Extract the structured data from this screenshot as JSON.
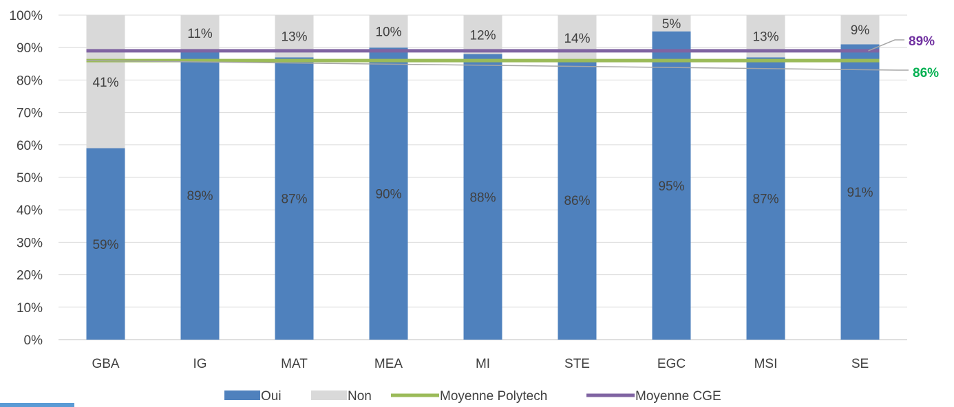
{
  "chart_data": {
    "type": "bar",
    "stacked": true,
    "categories": [
      "GBA",
      "IG",
      "MAT",
      "MEA",
      "MI",
      "STE",
      "EGC",
      "MSI",
      "SE"
    ],
    "series": [
      {
        "name": "Oui",
        "type": "bar",
        "color": "#4f81bd",
        "values": [
          59,
          89,
          87,
          90,
          88,
          86,
          95,
          87,
          91
        ],
        "labels": [
          "59%",
          "89%",
          "87%",
          "90%",
          "88%",
          "86%",
          "95%",
          "87%",
          "91%"
        ]
      },
      {
        "name": "Non",
        "type": "bar",
        "color": "#d9d9d9",
        "values": [
          41,
          11,
          13,
          10,
          12,
          14,
          5,
          13,
          9
        ],
        "labels": [
          "41%",
          "11%",
          "13%",
          "10%",
          "12%",
          "14%",
          "5%",
          "13%",
          "9%"
        ]
      },
      {
        "name": "Moyenne Polytech",
        "type": "line",
        "color": "#9bbb59",
        "value": 86,
        "label": "86%",
        "label_color": "#00b050"
      },
      {
        "name": "Moyenne CGE",
        "type": "line",
        "color": "#8064a2",
        "value": 89,
        "label": "89%",
        "label_color": "#7030a0"
      }
    ],
    "yticks": [
      "0%",
      "10%",
      "20%",
      "30%",
      "40%",
      "50%",
      "60%",
      "70%",
      "80%",
      "90%",
      "100%"
    ],
    "ylim": [
      0,
      100
    ],
    "xlabel": "",
    "ylabel": "",
    "legend_position": "bottom",
    "grid": true
  }
}
